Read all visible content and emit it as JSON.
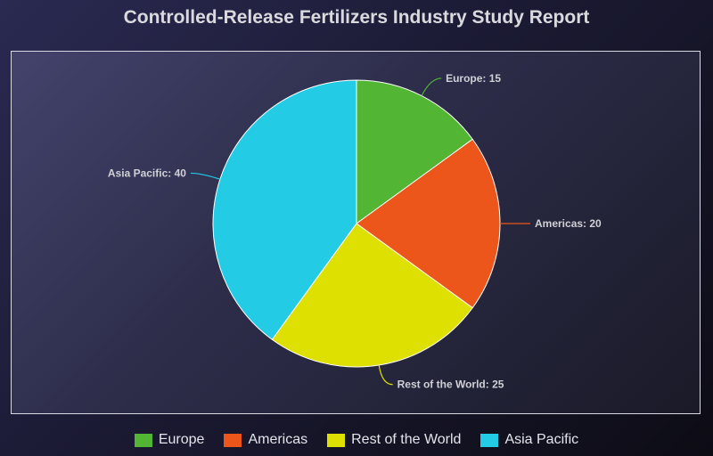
{
  "chart_data": {
    "type": "pie",
    "title": "Controlled-Release Fertilizers Industry Study Report",
    "slices": [
      {
        "label": "Europe",
        "value": 15,
        "color": "#52b534",
        "data_label": "Europe: 15"
      },
      {
        "label": "Americas",
        "value": 20,
        "color": "#ec561b",
        "data_label": "Americas: 20"
      },
      {
        "label": "Rest of the World",
        "value": 25,
        "color": "#dde000",
        "data_label": "Rest of the World: 25"
      },
      {
        "label": "Asia Pacific",
        "value": 40,
        "color": "#24cbe5",
        "data_label": "Asia Pacific: 40"
      }
    ],
    "legend_position": "bottom"
  }
}
